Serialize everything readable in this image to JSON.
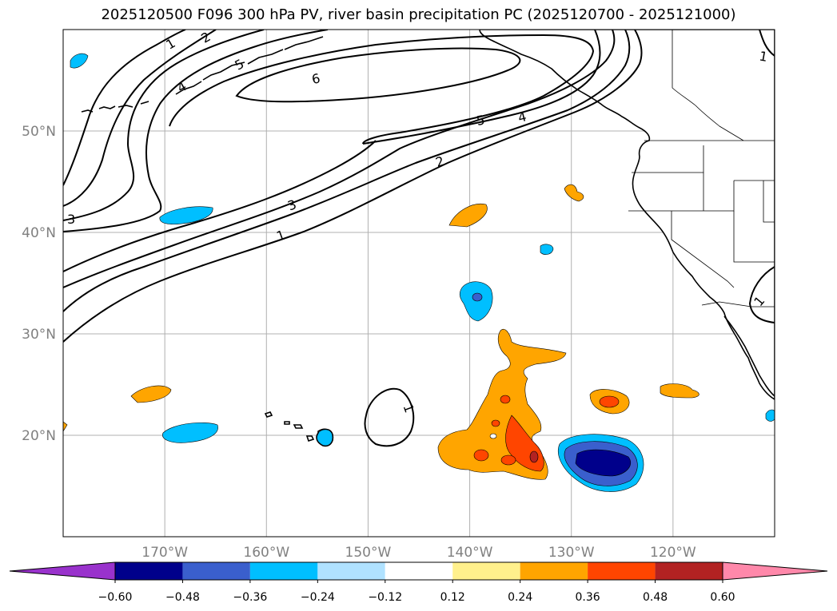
{
  "title": "2025120500 F096 300 hPa PV, river basin precipitation PC (2025120700 - 2025121000)",
  "map": {
    "lon_range": [
      -180,
      -110
    ],
    "lat_range": [
      10,
      60
    ],
    "lon_ticks": [
      {
        "value": -170,
        "label": "170°W"
      },
      {
        "value": -160,
        "label": "160°W"
      },
      {
        "value": -150,
        "label": "150°W"
      },
      {
        "value": -140,
        "label": "140°W"
      },
      {
        "value": -130,
        "label": "130°W"
      },
      {
        "value": -120,
        "label": "120°W"
      }
    ],
    "lat_ticks": [
      {
        "value": 20,
        "label": "20°N"
      },
      {
        "value": 30,
        "label": "30°N"
      },
      {
        "value": 40,
        "label": "40°N"
      },
      {
        "value": 50,
        "label": "50°N"
      }
    ],
    "grid": true,
    "pv_contour_labels": [
      "1",
      "2",
      "3",
      "4",
      "5",
      "6"
    ]
  },
  "colorbar": {
    "levels": [
      "−0.60",
      "−0.48",
      "−0.36",
      "−0.24",
      "−0.12",
      "0.12",
      "0.24",
      "0.36",
      "0.48",
      "0.60"
    ],
    "colors": [
      "#9932cc",
      "#00008b",
      "#3a5fcd",
      "#00bfff",
      "#b0e2ff",
      "#ffffff",
      "#fff08c",
      "#ffa500",
      "#ff4500",
      "#b22222",
      "#ff88aa"
    ],
    "extend": "both"
  },
  "colors": {
    "land_border": "#000000",
    "grid": "#b0b0b0",
    "tick_label": "#808080"
  }
}
